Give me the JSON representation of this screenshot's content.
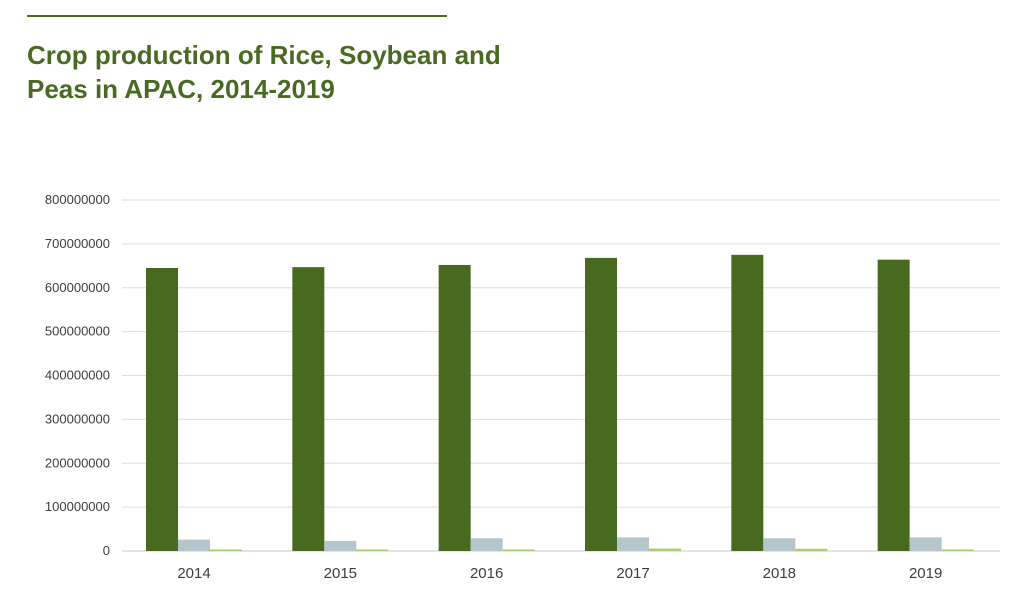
{
  "chart_data": {
    "type": "bar",
    "title": "Crop production of Rice, Soybean and Peas in APAC, 2014-2019",
    "xlabel": "",
    "ylabel": "",
    "categories": [
      "2014",
      "2015",
      "2016",
      "2017",
      "2018",
      "2019"
    ],
    "ylim": [
      0,
      800000000
    ],
    "yticks": [
      0,
      100000000,
      200000000,
      300000000,
      400000000,
      500000000,
      600000000,
      700000000,
      800000000
    ],
    "grid": true,
    "legend": "none",
    "series": [
      {
        "color": "#476a1f",
        "values": [
          645000000,
          647000000,
          652000000,
          668000000,
          675000000,
          664000000
        ]
      },
      {
        "color": "#b5c5cc",
        "values": [
          26000000,
          23000000,
          29000000,
          31000000,
          29000000,
          31000000
        ]
      },
      {
        "color": "#a8d06a",
        "values": [
          3500000,
          3500000,
          3500000,
          5500000,
          5000000,
          3500000
        ]
      }
    ]
  }
}
